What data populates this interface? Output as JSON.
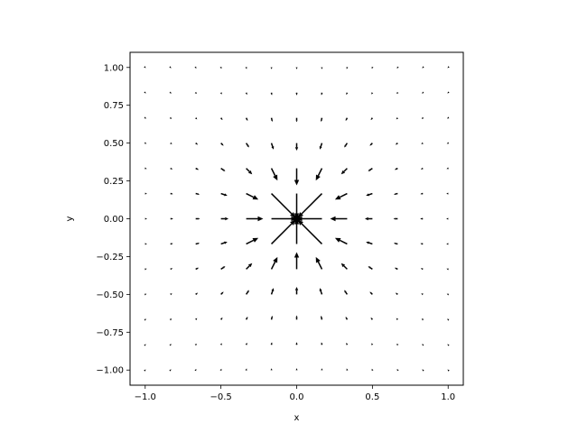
{
  "chart_data": {
    "type": "quiver",
    "title": "",
    "xlabel": "x",
    "ylabel": "y",
    "xlim": [
      -1.1,
      1.1
    ],
    "ylim": [
      -1.1,
      1.1
    ],
    "grid": false,
    "x_ticks": [
      -1.0,
      -0.5,
      0.0,
      0.5,
      1.0
    ],
    "x_tick_labels": [
      "−1.0",
      "−0.5",
      "0.0",
      "0.5",
      "1.0"
    ],
    "y_ticks": [
      -1.0,
      -0.75,
      -0.5,
      -0.25,
      0.0,
      0.25,
      0.5,
      0.75,
      1.0
    ],
    "y_tick_labels": [
      "−1.00",
      "−0.75",
      "−0.50",
      "−0.25",
      "0.00",
      "0.25",
      "0.50",
      "0.75",
      "1.00"
    ],
    "grid_x": [
      -1.0,
      -0.8333,
      -0.6667,
      -0.5,
      -0.3333,
      -0.1667,
      0.0,
      0.1667,
      0.3333,
      0.5,
      0.6667,
      0.8333,
      1.0
    ],
    "grid_y": [
      -1.0,
      -0.8333,
      -0.6667,
      -0.5,
      -0.3333,
      -0.1667,
      0.0,
      0.1667,
      0.3333,
      0.5,
      0.6667,
      0.8333,
      1.0
    ],
    "field": "vectors point toward the origin (0, 0); arrows are longest near the origin and shrink toward the edges",
    "vector_model": {
      "u": "-x / r^3",
      "v": "-y / r^3"
    },
    "origin_point": {
      "x": 0.0,
      "y": 0.0
    },
    "arrow_color": "#000000"
  }
}
